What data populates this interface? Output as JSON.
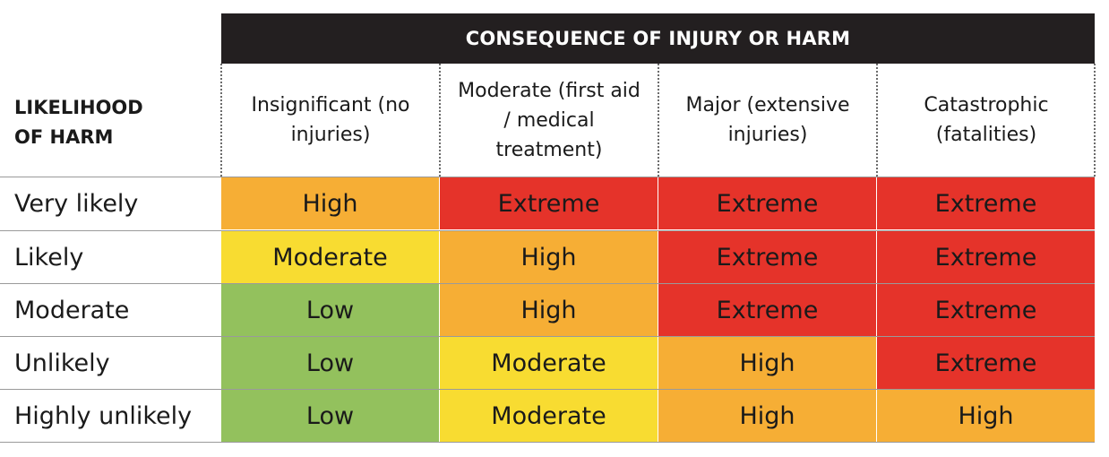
{
  "header": {
    "title": "CONSEQUENCE OF INJURY OR HARM"
  },
  "likelihood_title": "LIKELIHOOD\nOF HARM",
  "columns": [
    "Insignificant (no injuries)",
    "Moderate (first aid / medical treatment)",
    "Major (extensive injuries)",
    "Catastrophic (fatalities)"
  ],
  "rows": [
    {
      "label": "Very likely",
      "cells": [
        "High",
        "Extreme",
        "Extreme",
        "Extreme"
      ]
    },
    {
      "label": "Likely",
      "cells": [
        "Moderate",
        "High",
        "Extreme",
        "Extreme"
      ]
    },
    {
      "label": "Moderate",
      "cells": [
        "Low",
        "High",
        "Extreme",
        "Extreme"
      ]
    },
    {
      "label": "Unlikely",
      "cells": [
        "Low",
        "Moderate",
        "High",
        "Extreme"
      ]
    },
    {
      "label": "Highly unlikely",
      "cells": [
        "Low",
        "Moderate",
        "High",
        "High"
      ]
    }
  ],
  "risk_colors": {
    "Low": "#93c15d",
    "Moderate": "#f8dc31",
    "High": "#f6ae35",
    "Extreme": "#e5332a"
  }
}
